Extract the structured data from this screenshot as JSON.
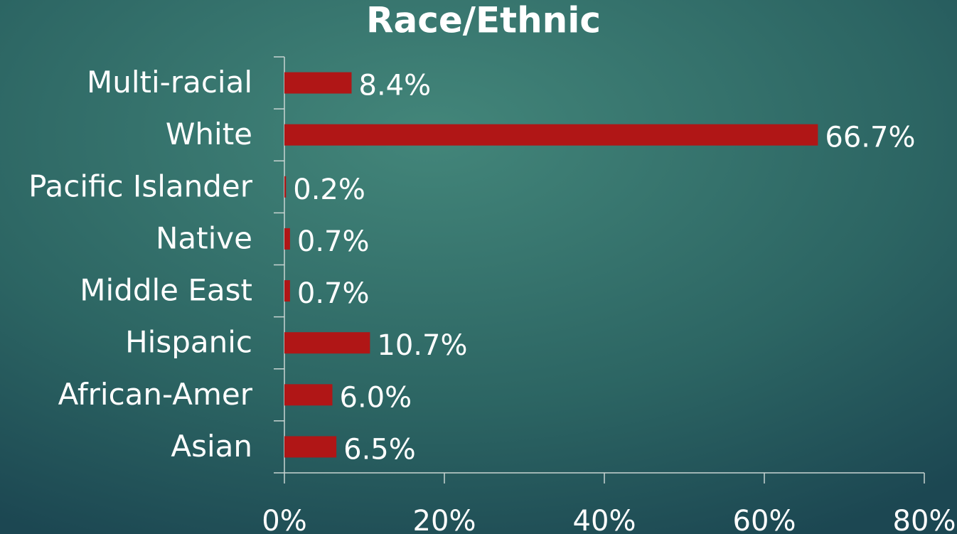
{
  "chart_data": {
    "type": "barh",
    "title": "Race/Ethnic",
    "categories": [
      "Multi-racial",
      "White",
      "Pacific Islander",
      "Native",
      "Middle East",
      "Hispanic",
      "African-Amer",
      "Asian"
    ],
    "values": [
      8.4,
      66.7,
      0.2,
      0.7,
      0.7,
      10.7,
      6.0,
      6.5
    ],
    "value_labels": [
      "8.4%",
      "66.7%",
      "0.2%",
      "0.7%",
      "0.7%",
      "10.7%",
      "6.0%",
      "6.5%"
    ],
    "color": "#b01616",
    "xlim": [
      0,
      80
    ],
    "xticks": [
      {
        "value": 0,
        "label": "0%"
      },
      {
        "value": 20,
        "label": "20%"
      },
      {
        "value": 40,
        "label": "40%"
      },
      {
        "value": 60,
        "label": "60%"
      },
      {
        "value": 80,
        "label": "80%"
      }
    ],
    "grid": false
  }
}
